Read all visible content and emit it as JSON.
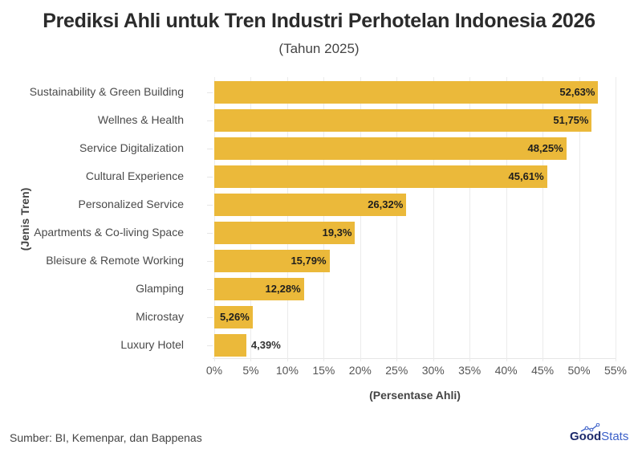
{
  "header": {
    "title": "Prediksi Ahli untuk Tren Industri Perhotelan Indonesia 2026",
    "subtitle": "(Tahun 2025)"
  },
  "footer": {
    "source": "Sumber: BI, Kemenpar, dan Bappenas",
    "logo_good": "Good",
    "logo_stats": "Stats"
  },
  "colors": {
    "bar": "#ebb93a",
    "grid": "#ebebeb",
    "logo_primary": "#1d2a6b",
    "logo_secondary": "#3a5fc8"
  },
  "chart_data": {
    "type": "bar",
    "orientation": "horizontal",
    "title": "Prediksi Ahli untuk Tren Industri Perhotelan Indonesia 2026",
    "subtitle": "(Tahun 2025)",
    "xlabel": "(Persentase Ahli)",
    "ylabel": "(Jenis Tren)",
    "xlim": [
      0,
      55
    ],
    "x_ticks": [
      "0%",
      "5%",
      "10%",
      "15%",
      "20%",
      "25%",
      "30%",
      "35%",
      "40%",
      "45%",
      "50%",
      "55%"
    ],
    "grid": true,
    "legend": null,
    "categories": [
      "Sustainability & Green Building",
      "Wellnes & Health",
      "Service Digitalization",
      "Cultural Experience",
      "Personalized Service",
      "Apartments & Co-living Space",
      "Bleisure & Remote Working",
      "Glamping",
      "Microstay",
      "Luxury Hotel"
    ],
    "values": [
      52.63,
      51.75,
      48.25,
      45.61,
      26.32,
      19.3,
      15.79,
      12.28,
      5.26,
      4.39
    ],
    "labels": [
      "52,63%",
      "51,75%",
      "48,25%",
      "45,61%",
      "26,32%",
      "19,3%",
      "15,79%",
      "12,28%",
      "5,26%",
      "4,39%"
    ],
    "source": "Sumber: BI, Kemenpar, dan Bappenas"
  }
}
